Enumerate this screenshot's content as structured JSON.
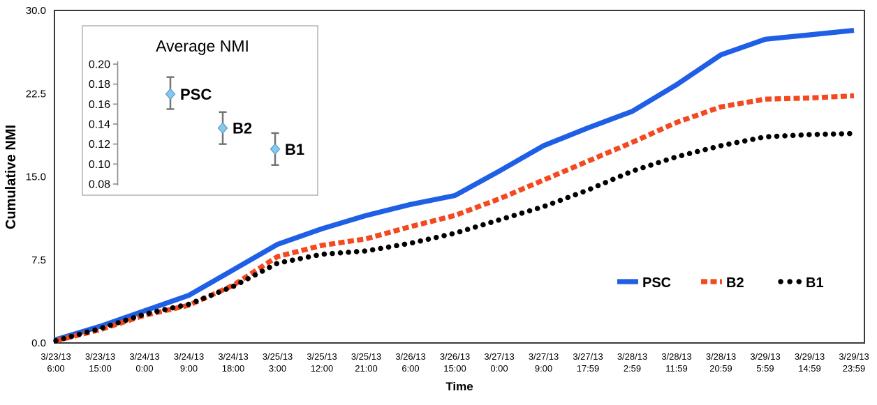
{
  "chart_data": [
    {
      "id": "cumulative-nmi",
      "type": "line",
      "title": "",
      "xlabel": "Time",
      "ylabel": "Cumulative NMI",
      "ylim": [
        0,
        30
      ],
      "yticks": [
        "30.0",
        "22.5",
        "15.0",
        "7.5",
        "0.0"
      ],
      "grid": false,
      "legend_position": "inside-right-middle",
      "categories": [
        "3/23/13 6:00",
        "3/23/13 15:00",
        "3/24/13 0:00",
        "3/24/13 9:00",
        "3/24/13 18:00",
        "3/25/13 3:00",
        "3/25/13 12:00",
        "3/25/13 21:00",
        "3/26/13 6:00",
        "3/26/13 15:00",
        "3/27/13 0:00",
        "3/27/13 9:00",
        "3/27/13 17:59",
        "3/28/13 2:59",
        "3/28/13 11:59",
        "3/28/13 20:59",
        "3/29/13 5:59",
        "3/29/13 14:59",
        "3/29/13 23:59"
      ],
      "series": [
        {
          "name": "PSC",
          "style": "solid",
          "color": "#1e5fe6",
          "values": [
            0.3,
            1.5,
            2.9,
            4.3,
            6.6,
            8.9,
            10.3,
            11.5,
            12.5,
            13.3,
            15.5,
            17.8,
            19.4,
            20.9,
            23.3,
            26.0,
            27.4,
            27.8,
            28.2
          ]
        },
        {
          "name": "B2",
          "style": "dashed",
          "color": "#f4491f",
          "values": [
            0.2,
            1.2,
            2.5,
            3.4,
            5.2,
            7.8,
            8.8,
            9.4,
            10.5,
            11.5,
            13.0,
            14.7,
            16.4,
            18.1,
            19.9,
            21.3,
            22.0,
            22.1,
            22.3
          ]
        },
        {
          "name": "B1",
          "style": "dotted",
          "color": "#000000",
          "values": [
            0.2,
            1.3,
            2.6,
            3.5,
            5.1,
            7.2,
            8.0,
            8.3,
            9.0,
            9.9,
            11.1,
            12.3,
            13.8,
            15.5,
            16.8,
            17.8,
            18.6,
            18.8,
            18.9
          ]
        }
      ]
    },
    {
      "id": "average-nmi-inset",
      "type": "scatter",
      "title": "Average NMI",
      "ylim": [
        0.08,
        0.2
      ],
      "yticks": [
        "0.20",
        "0.18",
        "0.16",
        "0.14",
        "0.12",
        "0.10",
        "0.08"
      ],
      "grid": false,
      "points": [
        {
          "label": "PSC",
          "value": 0.17,
          "err_low": 0.155,
          "err_high": 0.187
        },
        {
          "label": "B2",
          "value": 0.136,
          "err_low": 0.12,
          "err_high": 0.152
        },
        {
          "label": "B1",
          "value": 0.115,
          "err_low": 0.099,
          "err_high": 0.131
        }
      ],
      "marker": {
        "shape": "diamond",
        "fill": "#85c9ee",
        "stroke": "#5b9bc9"
      },
      "error_bar_color": "#757575"
    }
  ],
  "colors": {
    "psc_blue": "#1e5fe6",
    "b2_red": "#f4491f",
    "b1_black": "#000000",
    "plot_border": "#3a3a3a",
    "inset_border": "#b3b3b3",
    "inset_axis": "#8c8c8c"
  }
}
